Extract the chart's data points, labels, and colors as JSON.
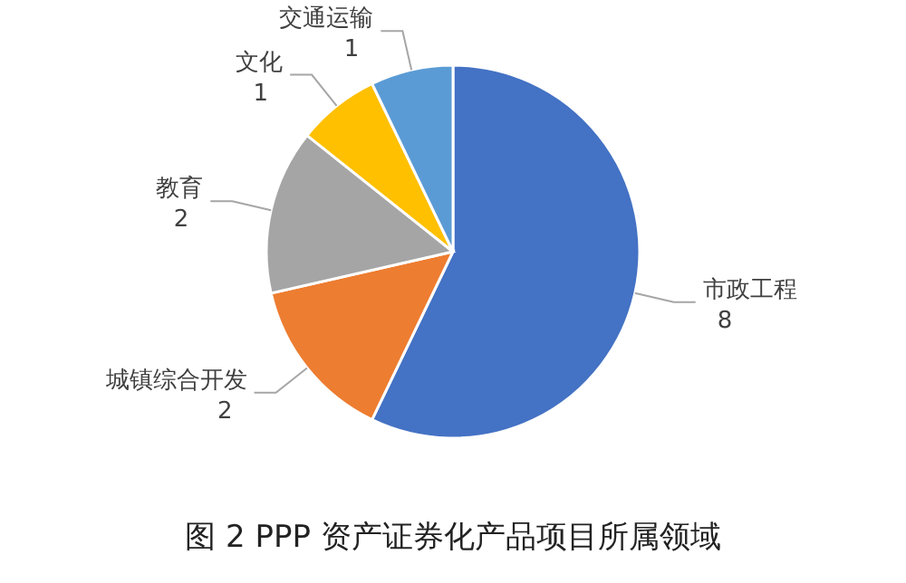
{
  "chart_data": {
    "type": "pie",
    "title": "图 2 PPP 资产证券化产品项目所属领域",
    "categories": [
      "市政工程",
      "城镇综合开发",
      "教育",
      "文化",
      "交通运输"
    ],
    "values": [
      8,
      2,
      2,
      1,
      1
    ],
    "colors": [
      "#4472c4",
      "#ed7d31",
      "#a5a5a5",
      "#ffc000",
      "#5b9bd5"
    ],
    "data_labels": true
  }
}
